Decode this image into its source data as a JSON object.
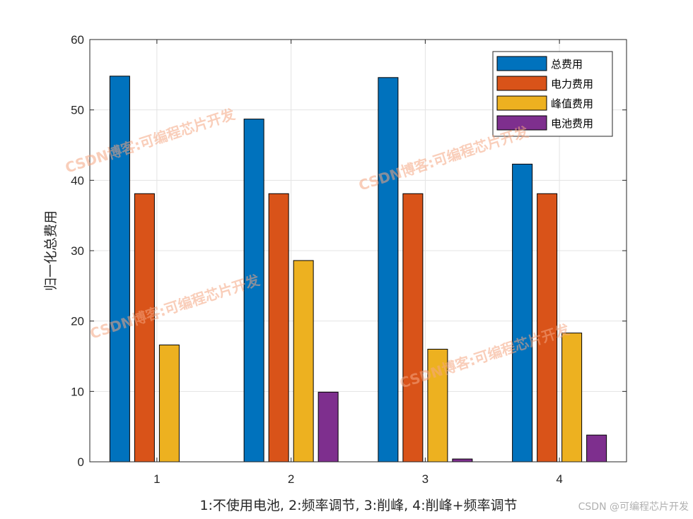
{
  "chart_data": {
    "type": "bar",
    "categories": [
      "1",
      "2",
      "3",
      "4"
    ],
    "series": [
      {
        "name": "总费用",
        "values": [
          54.8,
          48.7,
          54.6,
          42.3
        ]
      },
      {
        "name": "电力费用",
        "values": [
          38.1,
          38.1,
          38.1,
          38.1
        ]
      },
      {
        "name": "峰值费用",
        "values": [
          16.6,
          28.6,
          16.0,
          18.3
        ]
      },
      {
        "name": "电池费用",
        "values": [
          0,
          9.9,
          0.4,
          3.8
        ]
      }
    ],
    "title": "",
    "xlabel": "1:不使用电池, 2:频率调节, 3:削峰, 4:削峰+频率调节",
    "ylabel": "归一化总费用",
    "ylim": [
      0,
      60
    ],
    "yticks": [
      0,
      10,
      20,
      30,
      40,
      50,
      60
    ],
    "grid": true,
    "legend_position": "top-right",
    "colors": [
      "#0072BD",
      "#D95319",
      "#EDB120",
      "#7E2F8E"
    ]
  },
  "watermark_text": "CSDN博客:可编程芯片开发",
  "credit_text": "CSDN @可编程芯片开发"
}
